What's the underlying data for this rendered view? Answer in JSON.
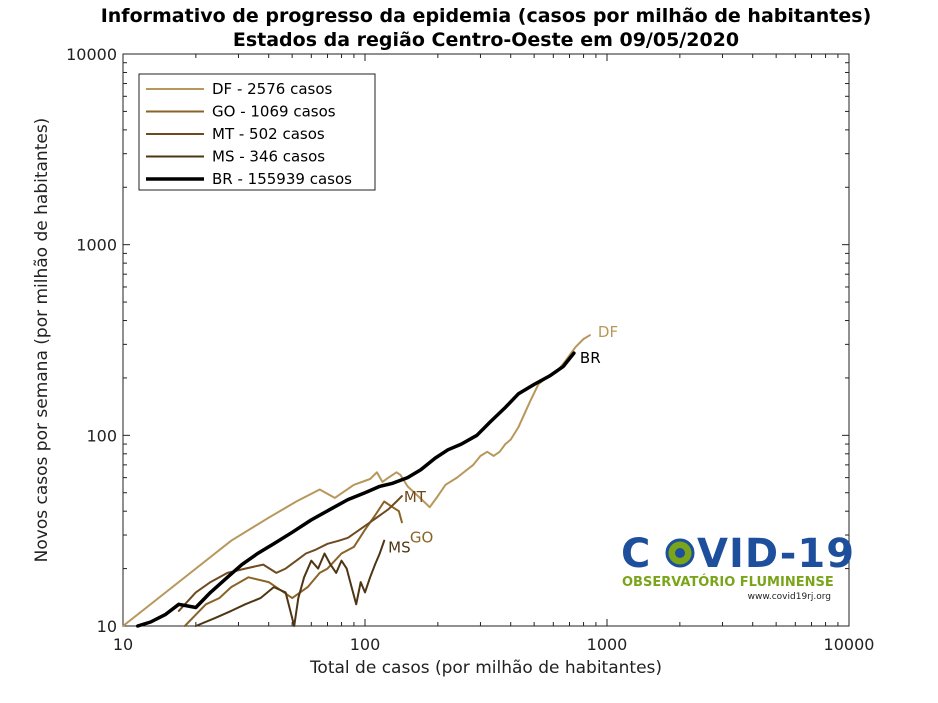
{
  "chart_data": {
    "type": "line",
    "title": "Informativo de progresso da epidemia (casos por milhão de habitantes)",
    "subtitle": "Estados da região Centro-Oeste  em 09/05/2020",
    "xlabel": "Total de casos (por milhão de habitantes)",
    "ylabel": "Novos casos por semana (por milhão de habitantes)",
    "xscale": "log",
    "yscale": "log",
    "xlim": [
      10,
      10000
    ],
    "ylim": [
      10,
      10000
    ],
    "xticks": [
      10,
      100,
      1000,
      10000
    ],
    "yticks": [
      10,
      100,
      1000,
      10000
    ],
    "xtick_labels": [
      "10",
      "100",
      "1000",
      "10000"
    ],
    "ytick_labels": [
      "10",
      "100",
      "1000",
      "10000"
    ],
    "legend_position": "top-left",
    "grid": false,
    "series": [
      {
        "name": "DF - 2576 casos",
        "end_label": "DF",
        "color": "#b8975a",
        "width": 2,
        "x": [
          10,
          14,
          20,
          28,
          40,
          52,
          65,
          75,
          90,
          105,
          112,
          118,
          125,
          135,
          140,
          150,
          160,
          175,
          185,
          200,
          215,
          240,
          260,
          280,
          300,
          320,
          340,
          360,
          380,
          400,
          430,
          480,
          520,
          560,
          620,
          680,
          740,
          800,
          850
        ],
        "y": [
          10,
          14,
          20,
          28,
          37,
          45,
          52,
          47,
          55,
          59,
          64,
          57,
          60,
          64,
          62,
          54,
          50,
          45,
          42,
          48,
          55,
          60,
          65,
          70,
          78,
          82,
          78,
          82,
          90,
          95,
          110,
          150,
          185,
          200,
          215,
          250,
          290,
          320,
          335
        ]
      },
      {
        "name": "GO - 1069 casos",
        "end_label": "GO",
        "color": "#8a6328",
        "width": 2,
        "x": [
          18,
          22,
          25,
          28,
          33,
          40,
          50,
          58,
          65,
          70,
          75,
          80,
          90,
          100,
          110,
          120,
          130,
          138,
          142
        ],
        "y": [
          10,
          13,
          14,
          16,
          18,
          17,
          14,
          16,
          19,
          20,
          22,
          24,
          26,
          32,
          38,
          45,
          42,
          40,
          35
        ]
      },
      {
        "name": "MT - 502 casos",
        "end_label": "MT",
        "color": "#6e4a20",
        "width": 2,
        "x": [
          17,
          20,
          23,
          27,
          32,
          38,
          43,
          47,
          52,
          57,
          62,
          70,
          78,
          85,
          95,
          105,
          115,
          125,
          135,
          142
        ],
        "y": [
          12,
          15,
          17,
          19,
          20,
          21,
          19,
          20,
          22,
          24,
          25,
          27,
          28,
          29,
          32,
          35,
          38,
          41,
          45,
          48
        ]
      },
      {
        "name": "MS - 346 casos",
        "end_label": "MS",
        "color": "#4e3615",
        "width": 2,
        "x": [
          20,
          24,
          28,
          32,
          37,
          42,
          47,
          51,
          53,
          56,
          60,
          64,
          68,
          72,
          76,
          80,
          84,
          88,
          92,
          96,
          100,
          105,
          110,
          115,
          120
        ],
        "y": [
          10,
          11,
          12,
          13,
          14,
          16,
          15,
          10,
          14,
          18,
          22,
          20,
          24,
          21,
          19,
          22,
          20,
          16,
          13,
          17,
          15,
          18,
          21,
          24,
          28
        ]
      },
      {
        "name": "BR - 155939 casos",
        "end_label": "BR",
        "color": "#000000",
        "width": 3.5,
        "x": [
          11.5,
          13,
          15,
          17,
          20,
          23,
          27,
          31,
          36,
          42,
          50,
          60,
          72,
          85,
          100,
          115,
          130,
          150,
          170,
          195,
          220,
          250,
          290,
          330,
          380,
          430,
          500,
          580,
          660,
          730
        ],
        "y": [
          10,
          10.5,
          11.5,
          13,
          12.5,
          15,
          18,
          21,
          24,
          27,
          31,
          36,
          41,
          46,
          50,
          54,
          56,
          60,
          66,
          76,
          84,
          90,
          100,
          118,
          140,
          165,
          185,
          205,
          230,
          270
        ]
      }
    ]
  },
  "logo": {
    "main": "COVID-19",
    "sub": "OBSERVATÓRIO FLUMINENSE",
    "url": "www.covid19rj.org"
  }
}
